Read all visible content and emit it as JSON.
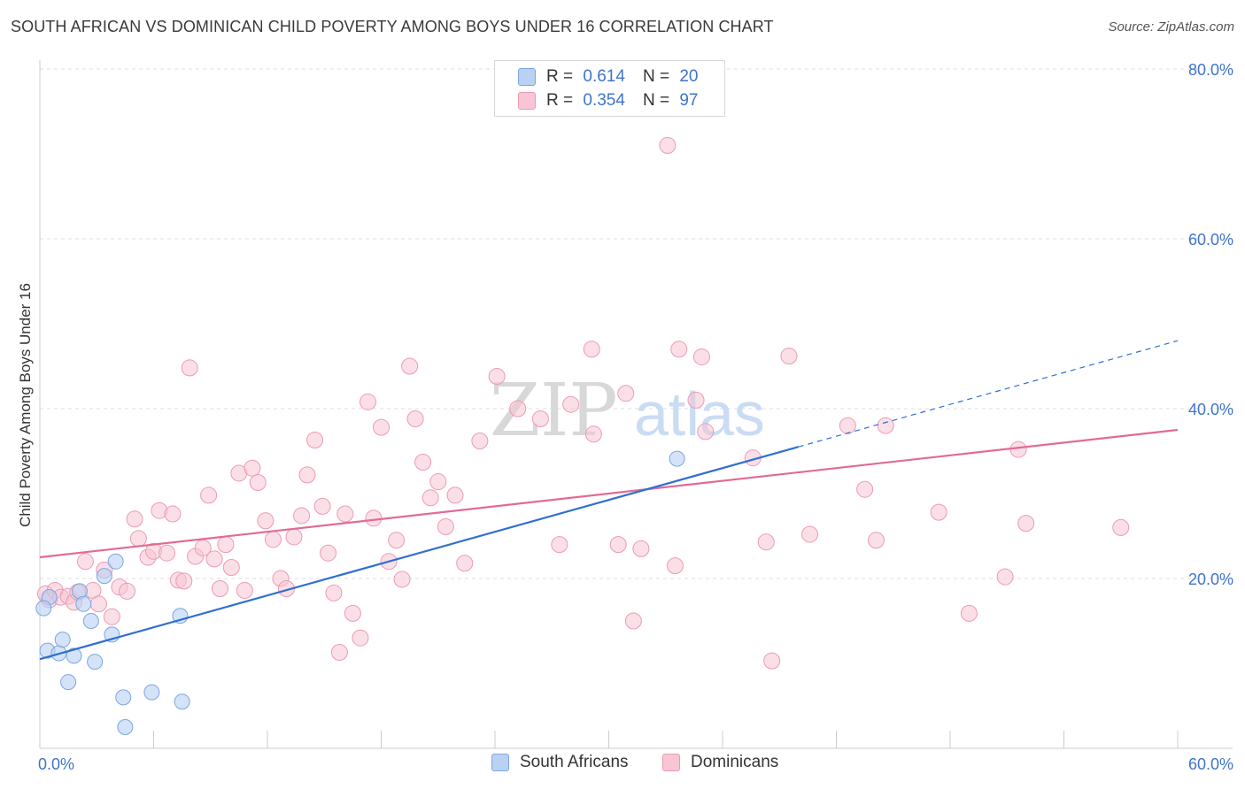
{
  "header": {
    "title": "SOUTH AFRICAN VS DOMINICAN CHILD POVERTY AMONG BOYS UNDER 16 CORRELATION CHART",
    "source": "Source: ZipAtlas.com"
  },
  "watermark": {
    "part1": "ZIP",
    "part2": "atlas"
  },
  "legend": {
    "rows": [
      {
        "r_label": "R =",
        "r_value": "0.614",
        "n_label": "N =",
        "n_value": "20"
      },
      {
        "r_label": "R =",
        "r_value": "0.354",
        "n_label": "N =",
        "n_value": "97"
      }
    ]
  },
  "bottom_legend": {
    "south_africans": "South Africans",
    "dominicans": "Dominicans"
  },
  "colors": {
    "blue_fill": "#b9d1f3",
    "blue_stroke": "#7ca6e3",
    "blue_line": "#2f6fd0",
    "pink_fill": "#f7c5d3",
    "pink_stroke": "#ec9ab4",
    "pink_line": "#e26a96",
    "grid": "#dddddd",
    "tick_text": "#3f74c9"
  },
  "chart_data": {
    "type": "scatter",
    "title": "SOUTH AFRICAN VS DOMINICAN CHILD POVERTY AMONG BOYS UNDER 16 CORRELATION CHART",
    "xlabel": "",
    "ylabel": "Child Poverty Among Boys Under 16",
    "xlim": [
      0,
      60
    ],
    "ylim": [
      0,
      80
    ],
    "x_tick_labels": [
      {
        "value": 0,
        "label": "0.0%"
      },
      {
        "value": 60,
        "label": "60.0%"
      }
    ],
    "y_tick_labels": [
      {
        "value": 20,
        "label": "20.0%"
      },
      {
        "value": 40,
        "label": "40.0%"
      },
      {
        "value": 60,
        "label": "60.0%"
      },
      {
        "value": 80,
        "label": "80.0%"
      }
    ],
    "grid": true,
    "legend_position": "top-center",
    "series": [
      {
        "name": "South Africans",
        "points": [
          [
            0.5,
            17.8
          ],
          [
            0.4,
            11.5
          ],
          [
            1.0,
            11.2
          ],
          [
            1.2,
            12.8
          ],
          [
            1.5,
            7.8
          ],
          [
            1.8,
            10.9
          ],
          [
            2.1,
            18.5
          ],
          [
            2.3,
            17.0
          ],
          [
            2.7,
            15.0
          ],
          [
            2.9,
            10.2
          ],
          [
            3.4,
            20.3
          ],
          [
            3.8,
            13.4
          ],
          [
            4.0,
            22.0
          ],
          [
            4.4,
            6.0
          ],
          [
            4.5,
            2.5
          ],
          [
            5.9,
            6.6
          ],
          [
            7.4,
            15.6
          ],
          [
            7.5,
            5.5
          ],
          [
            33.6,
            34.1
          ],
          [
            0.2,
            16.5
          ]
        ],
        "trend": {
          "x0": 0,
          "y0": 10.5,
          "x1": 40.0,
          "y1": 35.5,
          "dash_x1": 60.0,
          "dash_y1": 48.0
        }
      },
      {
        "name": "Dominicans",
        "points": [
          [
            0.3,
            18.2
          ],
          [
            0.5,
            17.5
          ],
          [
            0.8,
            18.6
          ],
          [
            1.1,
            17.8
          ],
          [
            1.5,
            17.9
          ],
          [
            1.8,
            17.2
          ],
          [
            2.0,
            18.4
          ],
          [
            2.4,
            22.0
          ],
          [
            2.8,
            18.6
          ],
          [
            3.1,
            17.0
          ],
          [
            3.4,
            21.0
          ],
          [
            3.8,
            15.5
          ],
          [
            4.2,
            19.0
          ],
          [
            4.6,
            18.5
          ],
          [
            5.0,
            27.0
          ],
          [
            5.2,
            24.7
          ],
          [
            5.7,
            22.5
          ],
          [
            6.0,
            23.2
          ],
          [
            6.3,
            28.0
          ],
          [
            6.7,
            23.0
          ],
          [
            7.0,
            27.6
          ],
          [
            7.3,
            19.8
          ],
          [
            7.6,
            19.7
          ],
          [
            7.9,
            44.8
          ],
          [
            8.2,
            22.6
          ],
          [
            8.6,
            23.6
          ],
          [
            8.9,
            29.8
          ],
          [
            9.2,
            22.3
          ],
          [
            9.5,
            18.8
          ],
          [
            9.8,
            24.0
          ],
          [
            10.1,
            21.3
          ],
          [
            10.5,
            32.4
          ],
          [
            10.8,
            18.6
          ],
          [
            11.2,
            33.0
          ],
          [
            11.5,
            31.3
          ],
          [
            11.9,
            26.8
          ],
          [
            12.3,
            24.6
          ],
          [
            12.7,
            20.0
          ],
          [
            13.0,
            18.8
          ],
          [
            13.4,
            24.9
          ],
          [
            13.8,
            27.4
          ],
          [
            14.1,
            32.2
          ],
          [
            14.5,
            36.3
          ],
          [
            14.9,
            28.5
          ],
          [
            15.2,
            23.0
          ],
          [
            15.5,
            18.3
          ],
          [
            15.8,
            11.3
          ],
          [
            16.1,
            27.6
          ],
          [
            16.5,
            15.9
          ],
          [
            16.9,
            13.0
          ],
          [
            17.3,
            40.8
          ],
          [
            17.6,
            27.1
          ],
          [
            18.0,
            37.8
          ],
          [
            18.4,
            22.0
          ],
          [
            18.8,
            24.5
          ],
          [
            19.1,
            19.9
          ],
          [
            19.5,
            45.0
          ],
          [
            19.8,
            38.8
          ],
          [
            20.2,
            33.7
          ],
          [
            20.6,
            29.5
          ],
          [
            21.0,
            31.4
          ],
          [
            21.4,
            26.1
          ],
          [
            21.9,
            29.8
          ],
          [
            22.4,
            21.8
          ],
          [
            23.2,
            36.2
          ],
          [
            24.1,
            43.8
          ],
          [
            25.2,
            40.0
          ],
          [
            26.4,
            38.8
          ],
          [
            27.4,
            24.0
          ],
          [
            28.0,
            40.5
          ],
          [
            29.1,
            47.0
          ],
          [
            29.2,
            37.0
          ],
          [
            30.5,
            24.0
          ],
          [
            30.9,
            41.8
          ],
          [
            31.3,
            15.0
          ],
          [
            31.7,
            23.5
          ],
          [
            33.1,
            71.0
          ],
          [
            33.5,
            21.5
          ],
          [
            33.7,
            47.0
          ],
          [
            34.6,
            41.0
          ],
          [
            34.9,
            46.1
          ],
          [
            35.1,
            37.3
          ],
          [
            37.6,
            34.2
          ],
          [
            38.3,
            24.3
          ],
          [
            38.6,
            10.3
          ],
          [
            39.5,
            46.2
          ],
          [
            40.6,
            25.2
          ],
          [
            42.6,
            38.0
          ],
          [
            43.5,
            30.5
          ],
          [
            44.1,
            24.5
          ],
          [
            44.6,
            38.0
          ],
          [
            47.4,
            27.8
          ],
          [
            49.0,
            15.9
          ],
          [
            50.9,
            20.2
          ],
          [
            51.6,
            35.2
          ],
          [
            52.0,
            26.5
          ],
          [
            57.0,
            26.0
          ]
        ],
        "trend": {
          "x0": 0,
          "y0": 22.5,
          "x1": 60.0,
          "y1": 37.5
        }
      }
    ]
  }
}
